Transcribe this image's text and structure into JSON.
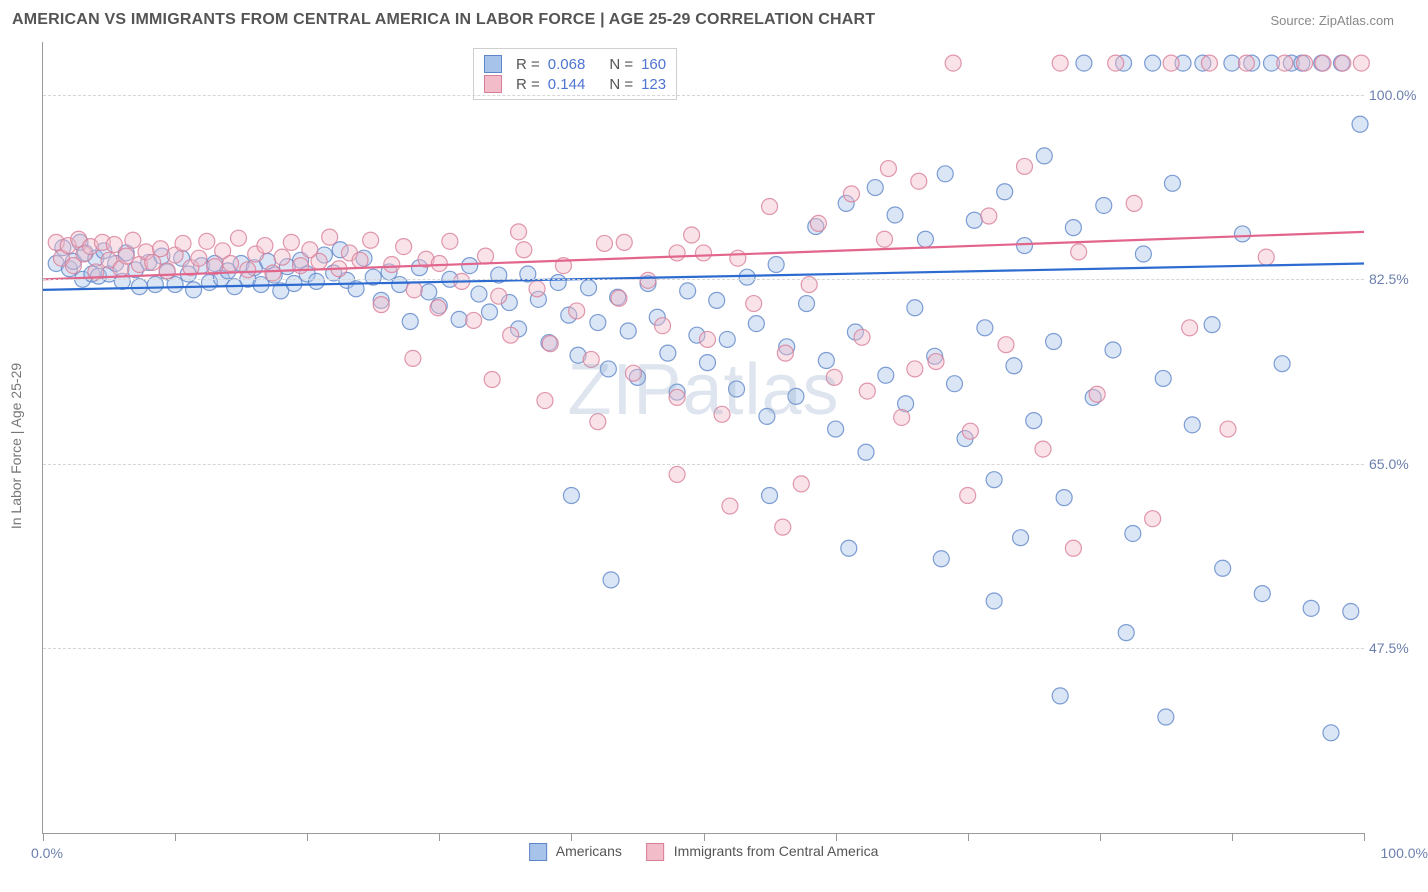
{
  "title": "AMERICAN VS IMMIGRANTS FROM CENTRAL AMERICA IN LABOR FORCE | AGE 25-29 CORRELATION CHART",
  "source": "Source: ZipAtlas.com",
  "watermark": "ZIPatlas",
  "y_axis_title": "In Labor Force | Age 25-29",
  "chart": {
    "type": "scatter",
    "background_color": "#ffffff",
    "grid_color": "#d6d6d6",
    "axis_color": "#9a9a9a",
    "tick_label_color": "#6b7fae",
    "xlim": [
      0,
      100
    ],
    "ylim": [
      30,
      105
    ],
    "x_tick_positions": [
      0,
      10,
      20,
      30,
      40,
      50,
      60,
      70,
      80,
      90,
      100
    ],
    "x_axis_labels": {
      "left": "0.0%",
      "right": "100.0%"
    },
    "y_gridlines": [
      {
        "value": 47.5,
        "label": "47.5%"
      },
      {
        "value": 65.0,
        "label": "65.0%"
      },
      {
        "value": 82.5,
        "label": "82.5%"
      },
      {
        "value": 100.0,
        "label": "100.0%"
      }
    ],
    "marker_radius": 8,
    "marker_opacity": 0.42,
    "line_width": 2.2,
    "series": [
      {
        "name": "Americans",
        "fill": "#a8c3ea",
        "stroke": "#5f86c9",
        "line_color": "#2d6bd1",
        "R": "0.068",
        "N": "160",
        "trend": {
          "x1": 0,
          "y1": 81.5,
          "x2": 100,
          "y2": 84.0
        },
        "points": [
          [
            1,
            84
          ],
          [
            1.5,
            85.5
          ],
          [
            2,
            83.5
          ],
          [
            2.3,
            84.2
          ],
          [
            2.8,
            86
          ],
          [
            3,
            82.5
          ],
          [
            3.2,
            85
          ],
          [
            3.7,
            83
          ],
          [
            4,
            84.5
          ],
          [
            4.2,
            82.8
          ],
          [
            4.6,
            85.2
          ],
          [
            5,
            83
          ],
          [
            5.5,
            84
          ],
          [
            6,
            82.3
          ],
          [
            6.3,
            85
          ],
          [
            7,
            83.4
          ],
          [
            7.3,
            81.8
          ],
          [
            8,
            84.1
          ],
          [
            8.5,
            82
          ],
          [
            9,
            84.7
          ],
          [
            9.4,
            83.2
          ],
          [
            10,
            82
          ],
          [
            10.5,
            84.5
          ],
          [
            11,
            83
          ],
          [
            11.4,
            81.5
          ],
          [
            12,
            83.8
          ],
          [
            12.6,
            82.2
          ],
          [
            13,
            84
          ],
          [
            13.5,
            82.6
          ],
          [
            14,
            83.3
          ],
          [
            14.5,
            81.8
          ],
          [
            15,
            84
          ],
          [
            15.5,
            82.5
          ],
          [
            16,
            83.6
          ],
          [
            16.5,
            82
          ],
          [
            17,
            84.2
          ],
          [
            17.5,
            82.9
          ],
          [
            18,
            81.4
          ],
          [
            18.5,
            83.7
          ],
          [
            19,
            82.1
          ],
          [
            19.5,
            84.3
          ],
          [
            20,
            83
          ],
          [
            20.7,
            82.3
          ],
          [
            21.3,
            84.8
          ],
          [
            22,
            83.1
          ],
          [
            22.5,
            85.3
          ],
          [
            23,
            82.4
          ],
          [
            23.7,
            81.6
          ],
          [
            24.3,
            84.5
          ],
          [
            25,
            82.7
          ],
          [
            25.6,
            80.5
          ],
          [
            26.2,
            83.2
          ],
          [
            27,
            82
          ],
          [
            27.8,
            78.5
          ],
          [
            28.5,
            83.6
          ],
          [
            29.2,
            81.3
          ],
          [
            30,
            80
          ],
          [
            30.8,
            82.5
          ],
          [
            31.5,
            78.7
          ],
          [
            32.3,
            83.8
          ],
          [
            33,
            81.1
          ],
          [
            33.8,
            79.4
          ],
          [
            34.5,
            82.9
          ],
          [
            35.3,
            80.3
          ],
          [
            36,
            77.8
          ],
          [
            36.7,
            83
          ],
          [
            37.5,
            80.6
          ],
          [
            38.3,
            76.5
          ],
          [
            39,
            82.2
          ],
          [
            39.8,
            79.1
          ],
          [
            40.5,
            75.3
          ],
          [
            41.3,
            81.7
          ],
          [
            42,
            78.4
          ],
          [
            42.8,
            74
          ],
          [
            43.5,
            80.8
          ],
          [
            44.3,
            77.6
          ],
          [
            45,
            73.2
          ],
          [
            45.8,
            82.1
          ],
          [
            46.5,
            78.9
          ],
          [
            47.3,
            75.5
          ],
          [
            48,
            71.8
          ],
          [
            48.8,
            81.4
          ],
          [
            49.5,
            77.2
          ],
          [
            50.3,
            74.6
          ],
          [
            51,
            80.5
          ],
          [
            51.8,
            76.8
          ],
          [
            52.5,
            72.1
          ],
          [
            53.3,
            82.7
          ],
          [
            54,
            78.3
          ],
          [
            54.8,
            69.5
          ],
          [
            55.5,
            83.9
          ],
          [
            56.3,
            76.1
          ],
          [
            57,
            71.4
          ],
          [
            57.8,
            80.2
          ],
          [
            58.5,
            87.5
          ],
          [
            59.3,
            74.8
          ],
          [
            60,
            68.3
          ],
          [
            60.8,
            89.7
          ],
          [
            61.5,
            77.5
          ],
          [
            62.3,
            66.1
          ],
          [
            63,
            91.2
          ],
          [
            63.8,
            73.4
          ],
          [
            64.5,
            88.6
          ],
          [
            65.3,
            70.7
          ],
          [
            66,
            79.8
          ],
          [
            66.8,
            86.3
          ],
          [
            67.5,
            75.2
          ],
          [
            68.3,
            92.5
          ],
          [
            69,
            72.6
          ],
          [
            69.8,
            67.4
          ],
          [
            70.5,
            88.1
          ],
          [
            71.3,
            77.9
          ],
          [
            72,
            63.5
          ],
          [
            72.8,
            90.8
          ],
          [
            73.5,
            74.3
          ],
          [
            74.3,
            85.7
          ],
          [
            75,
            69.1
          ],
          [
            75.8,
            94.2
          ],
          [
            76.5,
            76.6
          ],
          [
            77.3,
            61.8
          ],
          [
            78,
            87.4
          ],
          [
            78.8,
            103
          ],
          [
            79.5,
            71.3
          ],
          [
            80.3,
            89.5
          ],
          [
            81,
            75.8
          ],
          [
            81.8,
            103
          ],
          [
            82.5,
            58.4
          ],
          [
            83.3,
            84.9
          ],
          [
            84,
            103
          ],
          [
            84.8,
            73.1
          ],
          [
            85.5,
            91.6
          ],
          [
            86.3,
            103
          ],
          [
            87,
            68.7
          ],
          [
            87.8,
            103
          ],
          [
            88.5,
            78.2
          ],
          [
            89.3,
            55.1
          ],
          [
            90,
            103
          ],
          [
            90.8,
            86.8
          ],
          [
            91.5,
            103
          ],
          [
            92.3,
            52.7
          ],
          [
            93,
            103
          ],
          [
            93.8,
            74.5
          ],
          [
            94.5,
            103
          ],
          [
            95.3,
            103
          ],
          [
            96,
            51.3
          ],
          [
            96.8,
            103
          ],
          [
            97.5,
            39.5
          ],
          [
            98.3,
            103
          ],
          [
            99,
            51
          ],
          [
            99.7,
            97.2
          ],
          [
            43,
            54
          ],
          [
            55,
            62
          ],
          [
            61,
            57
          ],
          [
            68,
            56
          ],
          [
            72,
            52
          ],
          [
            74,
            58
          ],
          [
            77,
            43
          ],
          [
            82,
            49
          ],
          [
            85,
            41
          ],
          [
            40,
            62
          ]
        ]
      },
      {
        "name": "Immigrants from Central America",
        "fill": "#f3bcc9",
        "stroke": "#d87e98",
        "line_color": "#e2658c",
        "R": "0.144",
        "N": "123",
        "trend": {
          "x1": 0,
          "y1": 82.5,
          "x2": 100,
          "y2": 87.0
        },
        "points": [
          [
            1,
            86
          ],
          [
            1.4,
            84.5
          ],
          [
            1.9,
            85.7
          ],
          [
            2.3,
            83.8
          ],
          [
            2.7,
            86.3
          ],
          [
            3.1,
            84.9
          ],
          [
            3.6,
            85.6
          ],
          [
            4,
            83.2
          ],
          [
            4.5,
            86
          ],
          [
            5,
            84.3
          ],
          [
            5.4,
            85.8
          ],
          [
            5.9,
            83.5
          ],
          [
            6.3,
            84.7
          ],
          [
            6.8,
            86.2
          ],
          [
            7.3,
            83.9
          ],
          [
            7.8,
            85.1
          ],
          [
            8.3,
            84.1
          ],
          [
            8.9,
            85.4
          ],
          [
            9.4,
            83.3
          ],
          [
            10,
            84.8
          ],
          [
            10.6,
            85.9
          ],
          [
            11.2,
            83.6
          ],
          [
            11.8,
            84.5
          ],
          [
            12.4,
            86.1
          ],
          [
            13,
            83.7
          ],
          [
            13.6,
            85.2
          ],
          [
            14.2,
            84
          ],
          [
            14.8,
            86.4
          ],
          [
            15.5,
            83.4
          ],
          [
            16.1,
            84.9
          ],
          [
            16.8,
            85.7
          ],
          [
            17.4,
            83.1
          ],
          [
            18.1,
            84.6
          ],
          [
            18.8,
            86
          ],
          [
            19.5,
            83.8
          ],
          [
            20.2,
            85.3
          ],
          [
            20.9,
            84.2
          ],
          [
            21.7,
            86.5
          ],
          [
            22.4,
            83.5
          ],
          [
            23.2,
            85
          ],
          [
            24,
            84.3
          ],
          [
            24.8,
            86.2
          ],
          [
            25.6,
            80.1
          ],
          [
            26.4,
            83.9
          ],
          [
            27.3,
            85.6
          ],
          [
            28.1,
            81.5
          ],
          [
            29,
            84.4
          ],
          [
            29.9,
            79.8
          ],
          [
            30.8,
            86.1
          ],
          [
            31.7,
            82.3
          ],
          [
            32.6,
            78.6
          ],
          [
            33.5,
            84.7
          ],
          [
            34.5,
            80.9
          ],
          [
            35.4,
            77.2
          ],
          [
            36.4,
            85.3
          ],
          [
            37.4,
            81.6
          ],
          [
            38.4,
            76.4
          ],
          [
            39.4,
            83.8
          ],
          [
            40.4,
            79.5
          ],
          [
            41.5,
            74.9
          ],
          [
            42.5,
            85.9
          ],
          [
            43.6,
            80.7
          ],
          [
            44.7,
            73.6
          ],
          [
            45.8,
            82.4
          ],
          [
            46.9,
            78.1
          ],
          [
            48,
            71.3
          ],
          [
            49.1,
            86.7
          ],
          [
            50.3,
            76.8
          ],
          [
            51.4,
            69.7
          ],
          [
            52.6,
            84.5
          ],
          [
            53.8,
            80.2
          ],
          [
            55,
            89.4
          ],
          [
            56.2,
            75.5
          ],
          [
            57.4,
            63.1
          ],
          [
            58.7,
            87.8
          ],
          [
            59.9,
            73.2
          ],
          [
            61.2,
            90.6
          ],
          [
            62.4,
            71.9
          ],
          [
            63.7,
            86.3
          ],
          [
            65,
            69.4
          ],
          [
            66.3,
            91.8
          ],
          [
            67.6,
            74.7
          ],
          [
            68.9,
            103
          ],
          [
            70.2,
            68.1
          ],
          [
            71.6,
            88.5
          ],
          [
            72.9,
            76.3
          ],
          [
            74.3,
            93.2
          ],
          [
            75.7,
            66.4
          ],
          [
            77,
            103
          ],
          [
            78.4,
            85.1
          ],
          [
            79.8,
            71.6
          ],
          [
            81.2,
            103
          ],
          [
            82.6,
            89.7
          ],
          [
            84,
            59.8
          ],
          [
            85.4,
            103
          ],
          [
            86.8,
            77.9
          ],
          [
            88.3,
            103
          ],
          [
            89.7,
            68.3
          ],
          [
            91.1,
            103
          ],
          [
            92.6,
            84.6
          ],
          [
            94,
            103
          ],
          [
            95.5,
            103
          ],
          [
            96.9,
            103
          ],
          [
            98.4,
            103
          ],
          [
            99.8,
            103
          ],
          [
            28,
            75
          ],
          [
            34,
            73
          ],
          [
            38,
            71
          ],
          [
            42,
            69
          ],
          [
            48,
            64
          ],
          [
            52,
            61
          ],
          [
            56,
            59
          ],
          [
            62,
            77
          ],
          [
            66,
            74
          ],
          [
            78,
            57
          ],
          [
            36,
            87
          ],
          [
            44,
            86
          ],
          [
            50,
            85
          ],
          [
            58,
            82
          ],
          [
            64,
            93
          ],
          [
            70,
            62
          ],
          [
            48,
            85
          ],
          [
            30,
            84
          ]
        ]
      }
    ]
  },
  "legend_bottom": [
    {
      "swatch_fill": "#a8c3ea",
      "swatch_stroke": "#5f86c9",
      "label": "Americans"
    },
    {
      "swatch_fill": "#f3bcc9",
      "swatch_stroke": "#d87e98",
      "label": "Immigrants from Central America"
    }
  ],
  "stats_labels": {
    "R": "R =",
    "N": "N ="
  }
}
